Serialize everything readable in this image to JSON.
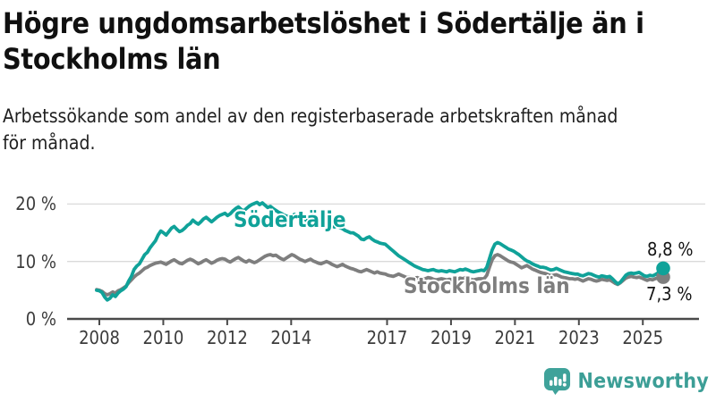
{
  "header": {
    "title_lines": [
      "Högre ungdomsarbetslöshet i Södertälje än i",
      "Stockholms län"
    ],
    "subtitle_lines": [
      "Arbetssökande som andel av den registerbaserade arbetskraften månad",
      "för månad."
    ]
  },
  "chart_data": {
    "type": "line",
    "x_unit": "month",
    "x_start_year": 2008,
    "x_end_year_fraction": 2025.67,
    "x_ticks": [
      2008,
      2010,
      2012,
      2014,
      2017,
      2019,
      2021,
      2023,
      2025
    ],
    "y_ticks": [
      {
        "value": 0,
        "label": "0 %"
      },
      {
        "value": 10,
        "label": "10 %"
      },
      {
        "value": 20,
        "label": "20 %"
      }
    ],
    "ylim": [
      0,
      22
    ],
    "grid": true,
    "legend_position": "inline-labels",
    "colors": {
      "axis": "#4a4a4a",
      "gridline": "#dadada",
      "tick_text": "#3b3b3b"
    },
    "series": [
      {
        "name": "Södertälje",
        "color": "#10a299",
        "end_label": "8,8 %",
        "last_value": 8.8,
        "values": [
          5.0,
          4.9,
          4.6,
          3.8,
          3.3,
          3.6,
          4.2,
          3.9,
          4.5,
          4.9,
          5.2,
          5.6,
          6.6,
          7.4,
          8.6,
          9.2,
          9.6,
          10.4,
          11.2,
          11.6,
          12.4,
          13.0,
          13.6,
          14.6,
          15.3,
          15.0,
          14.6,
          15.2,
          15.8,
          16.1,
          15.6,
          15.2,
          15.4,
          15.8,
          16.3,
          16.6,
          17.2,
          16.8,
          16.5,
          16.9,
          17.4,
          17.7,
          17.3,
          16.9,
          17.3,
          17.7,
          18.0,
          18.2,
          18.4,
          18.0,
          18.3,
          18.8,
          19.2,
          19.5,
          19.1,
          18.8,
          19.2,
          19.6,
          19.9,
          20.1,
          20.3,
          19.9,
          20.2,
          19.8,
          19.4,
          19.6,
          19.2,
          18.9,
          18.6,
          18.4,
          18.1,
          17.9,
          17.7,
          17.9,
          18.2,
          17.8,
          17.5,
          17.7,
          17.3,
          17.0,
          16.8,
          17.0,
          16.7,
          16.5,
          16.3,
          16.6,
          16.8,
          16.5,
          16.2,
          16.0,
          16.2,
          15.9,
          15.7,
          15.4,
          15.2,
          15.0,
          15.0,
          14.7,
          14.4,
          13.9,
          13.8,
          14.1,
          14.3,
          13.9,
          13.6,
          13.4,
          13.2,
          13.1,
          13.0,
          12.6,
          12.2,
          11.8,
          11.4,
          11.0,
          10.7,
          10.4,
          10.1,
          9.8,
          9.5,
          9.2,
          9.0,
          8.8,
          8.6,
          8.5,
          8.4,
          8.5,
          8.6,
          8.4,
          8.3,
          8.4,
          8.3,
          8.2,
          8.4,
          8.3,
          8.2,
          8.4,
          8.6,
          8.5,
          8.7,
          8.5,
          8.3,
          8.2,
          8.3,
          8.4,
          8.5,
          8.4,
          9.0,
          10.5,
          12.0,
          13.0,
          13.3,
          13.1,
          12.8,
          12.5,
          12.2,
          12.0,
          11.8,
          11.5,
          11.2,
          10.8,
          10.4,
          10.1,
          9.9,
          9.6,
          9.4,
          9.2,
          9.0,
          9.0,
          8.9,
          8.7,
          8.5,
          8.6,
          8.8,
          8.6,
          8.4,
          8.2,
          8.1,
          8.0,
          7.9,
          7.8,
          7.8,
          7.6,
          7.5,
          7.7,
          7.9,
          7.8,
          7.6,
          7.4,
          7.3,
          7.5,
          7.4,
          7.3,
          7.4,
          7.0,
          6.5,
          6.1,
          6.4,
          7.0,
          7.6,
          7.9,
          8.0,
          7.9,
          8.0,
          8.1,
          7.8,
          7.5,
          7.4,
          7.6,
          7.5,
          7.7,
          8.0,
          8.5,
          8.8
        ]
      },
      {
        "name": "Stockholms län",
        "color": "#7e7e7e",
        "end_label": "7,3 %",
        "last_value": 7.3,
        "values": [
          5.1,
          5.0,
          4.8,
          4.4,
          4.2,
          4.4,
          4.7,
          4.5,
          4.9,
          5.1,
          5.4,
          5.7,
          6.3,
          6.8,
          7.3,
          7.7,
          8.0,
          8.4,
          8.8,
          9.0,
          9.3,
          9.5,
          9.7,
          9.8,
          9.9,
          9.7,
          9.5,
          9.8,
          10.1,
          10.3,
          10.0,
          9.7,
          9.6,
          9.9,
          10.2,
          10.4,
          10.2,
          9.9,
          9.6,
          9.8,
          10.1,
          10.3,
          10.0,
          9.7,
          9.9,
          10.2,
          10.4,
          10.5,
          10.4,
          10.1,
          9.9,
          10.2,
          10.5,
          10.7,
          10.4,
          10.1,
          9.9,
          10.2,
          10.0,
          9.8,
          10.0,
          10.3,
          10.6,
          10.9,
          11.1,
          11.2,
          11.0,
          11.1,
          10.8,
          10.5,
          10.3,
          10.6,
          10.9,
          11.2,
          11.0,
          10.7,
          10.4,
          10.2,
          10.0,
          10.2,
          10.4,
          10.1,
          9.9,
          9.7,
          9.6,
          9.8,
          10.0,
          9.8,
          9.5,
          9.3,
          9.1,
          9.3,
          9.5,
          9.2,
          9.0,
          8.8,
          8.7,
          8.5,
          8.3,
          8.2,
          8.4,
          8.6,
          8.4,
          8.2,
          8.0,
          8.2,
          8.0,
          7.9,
          7.8,
          7.6,
          7.5,
          7.4,
          7.6,
          7.8,
          7.6,
          7.4,
          7.2,
          7.3,
          7.2,
          7.1,
          7.2,
          7.0,
          6.9,
          7.0,
          7.2,
          7.1,
          6.9,
          6.8,
          6.9,
          7.0,
          6.9,
          6.8,
          6.9,
          6.8,
          6.7,
          6.9,
          7.1,
          7.0,
          7.2,
          7.1,
          6.9,
          6.8,
          6.9,
          7.0,
          7.0,
          7.0,
          7.6,
          9.0,
          10.3,
          11.0,
          11.2,
          11.0,
          10.7,
          10.4,
          10.1,
          9.9,
          9.8,
          9.5,
          9.2,
          8.9,
          9.1,
          9.3,
          9.0,
          8.7,
          8.5,
          8.3,
          8.1,
          8.0,
          7.9,
          7.7,
          7.5,
          7.6,
          7.7,
          7.5,
          7.3,
          7.2,
          7.1,
          7.0,
          7.0,
          6.9,
          7.0,
          6.8,
          6.6,
          6.8,
          7.0,
          6.9,
          6.7,
          6.6,
          6.7,
          6.9,
          6.8,
          6.7,
          6.8,
          6.5,
          6.2,
          6.0,
          6.3,
          6.7,
          7.1,
          7.3,
          7.4,
          7.3,
          7.2,
          7.3,
          7.1,
          6.9,
          6.7,
          6.9,
          6.8,
          7.0,
          7.1,
          7.2,
          7.3
        ]
      }
    ]
  },
  "footer": {
    "brand": "Newsworthy",
    "brand_color": "#3c9e96",
    "icon": "bar-chart-speech-bubble-icon",
    "icon_color": "#3fa29a"
  }
}
